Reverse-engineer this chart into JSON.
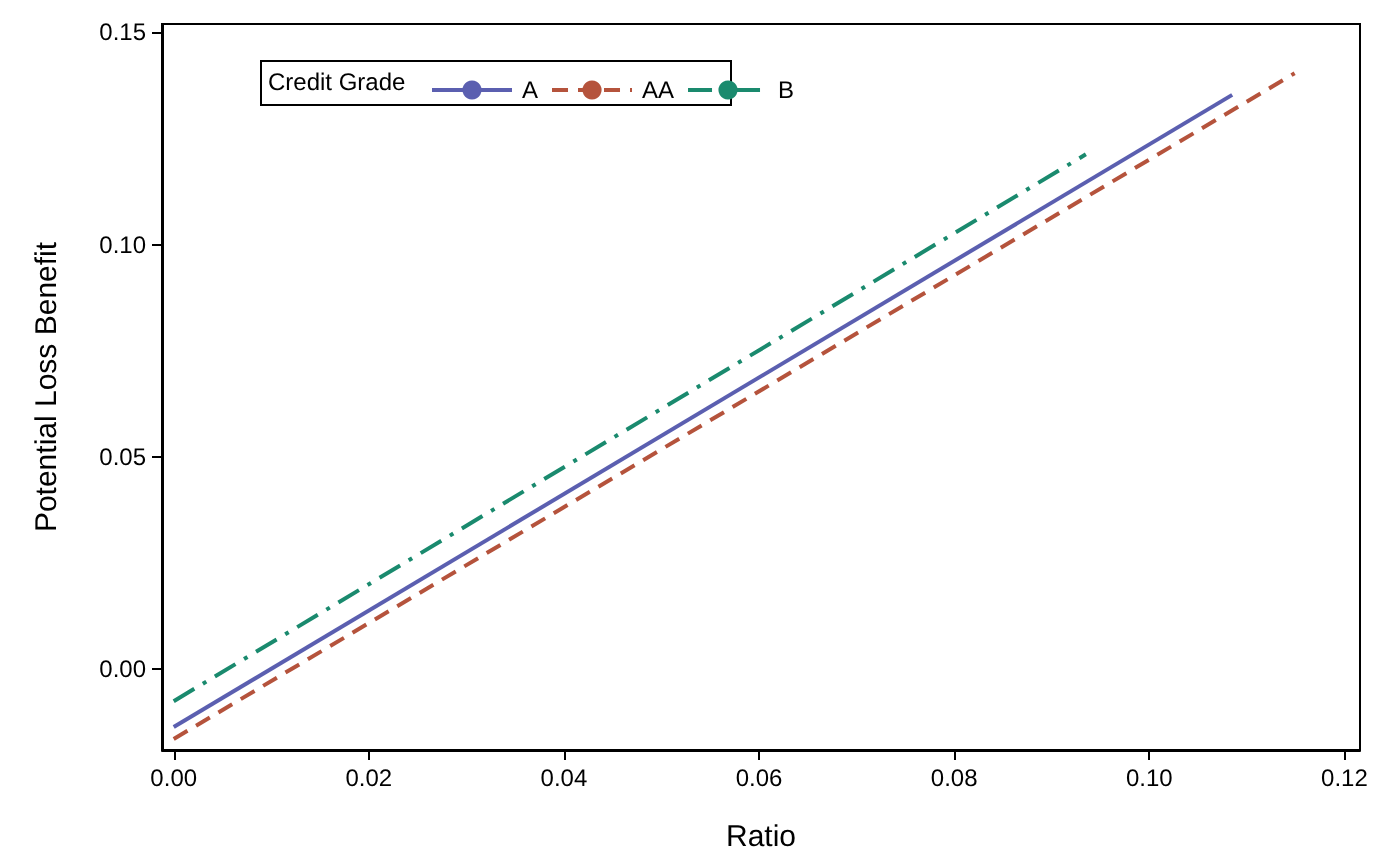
{
  "chart_data": {
    "type": "line",
    "xlabel": "Ratio",
    "ylabel": "Potential Loss Benefit",
    "legend_title": "Credit Grade",
    "legend": "top left",
    "grid": false,
    "marker": "none",
    "xlim": [
      -0.0012,
      0.1216
    ],
    "ylim": [
      -0.019,
      0.152
    ],
    "xticks": [
      {
        "value": 0,
        "label": "0.00"
      },
      {
        "value": 0.02,
        "label": "0.02"
      },
      {
        "value": 0.04,
        "label": "0.04"
      },
      {
        "value": 0.06,
        "label": "0.06"
      },
      {
        "value": 0.08,
        "label": "0.08"
      },
      {
        "value": 0.1,
        "label": "0.10"
      },
      {
        "value": 0.12,
        "label": "0.12"
      }
    ],
    "yticks": [
      {
        "value": 0,
        "label": "0.00"
      },
      {
        "value": 0.05,
        "label": "0.05"
      },
      {
        "value": 0.1,
        "label": "0.10"
      },
      {
        "value": 0.15,
        "label": "0.15"
      }
    ],
    "series": [
      {
        "name": "A",
        "color": "#5b5fb0",
        "line_style": "solid",
        "x": [
          0,
          0.1085
        ],
        "values": [
          -0.0136,
          0.1353
        ]
      },
      {
        "name": "AA",
        "color": "#b5533c",
        "line_style": "dashed",
        "x": [
          0,
          0.1149
        ],
        "values": [
          -0.0164,
          0.1404
        ]
      },
      {
        "name": "B",
        "color": "#1a8a6e",
        "line_style": "dashdot",
        "x": [
          0,
          0.0935
        ],
        "values": [
          -0.0075,
          0.1213
        ]
      }
    ]
  }
}
